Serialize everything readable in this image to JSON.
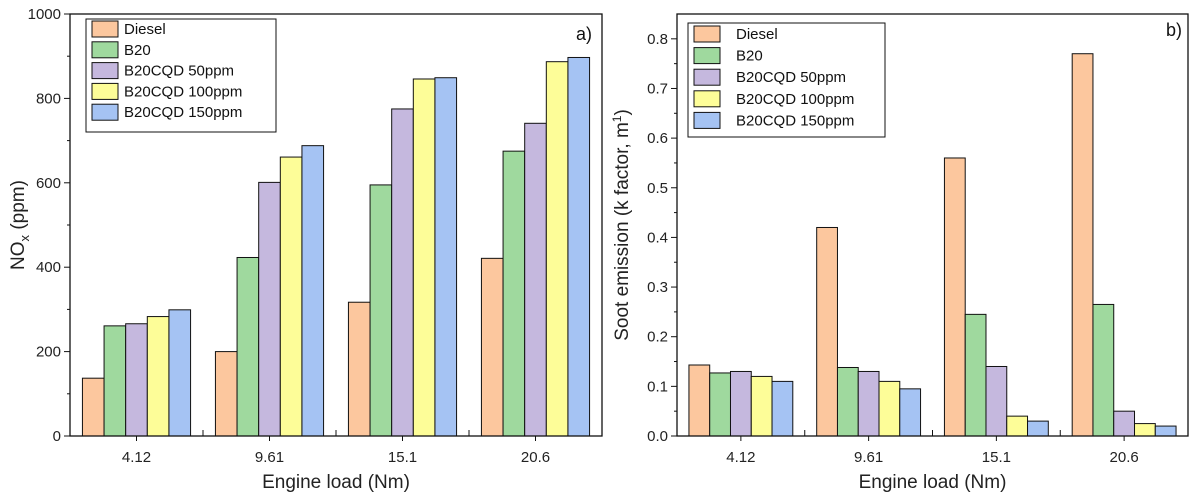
{
  "chart_data": [
    {
      "type": "bar",
      "panel_label": "a)",
      "xlabel": "Engine load (Nm)",
      "ylabel": "NO",
      "ylabel_sub": "x",
      "ylabel_tail": " (ppm)",
      "categories": [
        "4.12",
        "9.61",
        "15.1",
        "20.6"
      ],
      "ylim": [
        0,
        1000
      ],
      "yticks": [
        "0",
        "200",
        "400",
        "600",
        "800",
        "1000"
      ],
      "ytick_values": [
        0,
        200,
        400,
        600,
        800,
        1000
      ],
      "legend_position": "top-left",
      "grid": false,
      "series": [
        {
          "name": "Diesel",
          "color": "#fcc79e",
          "values": [
            137,
            200,
            317,
            421
          ]
        },
        {
          "name": "B20",
          "color": "#9fd99e",
          "values": [
            261,
            423,
            595,
            675
          ]
        },
        {
          "name": "B20CQD 50ppm",
          "color": "#c5b8de",
          "values": [
            266,
            601,
            775,
            741
          ]
        },
        {
          "name": "B20CQD 100ppm",
          "color": "#fdfd98",
          "values": [
            283,
            661,
            846,
            887
          ]
        },
        {
          "name": "B20CQD 150ppm",
          "color": "#a5c3f3",
          "values": [
            299,
            688,
            849,
            897
          ]
        }
      ]
    },
    {
      "type": "bar",
      "panel_label": "b)",
      "xlabel": "Engine load (Nm)",
      "ylabel": "Soot emission (k factor, m",
      "ylabel_sup": "1",
      "ylabel_tail": ")",
      "categories": [
        "4.12",
        "9.61",
        "15.1",
        "20.6"
      ],
      "ylim": [
        0,
        0.85
      ],
      "yticks": [
        "0.0",
        "0.1",
        "0.2",
        "0.3",
        "0.4",
        "0.5",
        "0.6",
        "0.7",
        "0.8"
      ],
      "ytick_values": [
        0,
        0.1,
        0.2,
        0.3,
        0.4,
        0.5,
        0.6,
        0.7,
        0.8
      ],
      "legend_position": "top-left",
      "grid": false,
      "series": [
        {
          "name": "Diesel",
          "color": "#fcc79e",
          "values": [
            0.143,
            0.42,
            0.56,
            0.77
          ]
        },
        {
          "name": "B20",
          "color": "#9fd99e",
          "values": [
            0.127,
            0.138,
            0.245,
            0.265
          ]
        },
        {
          "name": "B20CQD 50ppm",
          "color": "#c5b8de",
          "values": [
            0.13,
            0.13,
            0.14,
            0.05
          ]
        },
        {
          "name": "B20CQD 100ppm",
          "color": "#fdfd98",
          "values": [
            0.12,
            0.11,
            0.04,
            0.025
          ]
        },
        {
          "name": "B20CQD 150ppm",
          "color": "#a5c3f3",
          "values": [
            0.11,
            0.095,
            0.03,
            0.02
          ]
        }
      ]
    }
  ]
}
